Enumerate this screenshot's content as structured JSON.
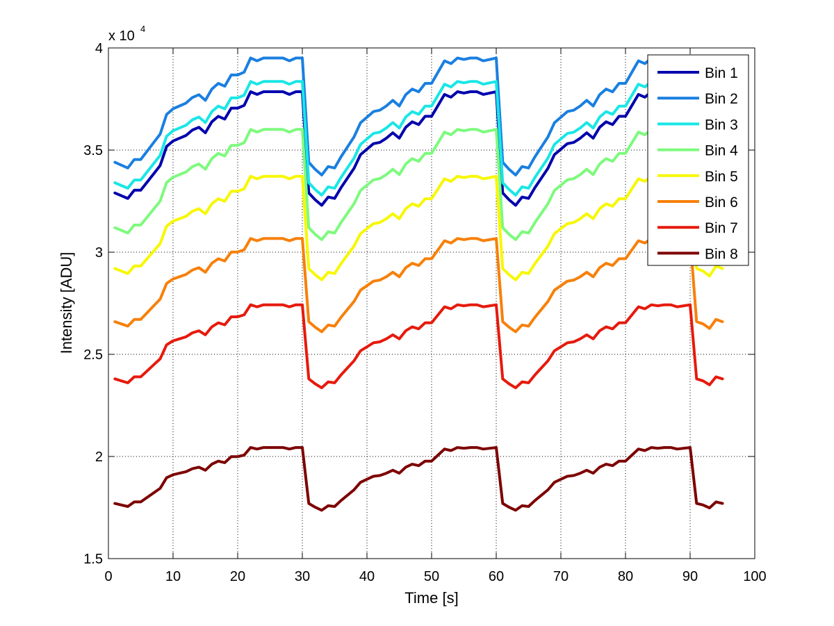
{
  "chart_data": {
    "type": "line",
    "title": "",
    "xlabel": "Time [s]",
    "ylabel": "Intensity [ADU]",
    "xlim": [
      0,
      100
    ],
    "ylim": [
      15000,
      40000
    ],
    "xticks": [
      0,
      10,
      20,
      30,
      40,
      50,
      60,
      70,
      80,
      90,
      100
    ],
    "yticks": [
      15000,
      20000,
      25000,
      30000,
      35000,
      40000
    ],
    "xtick_labels": [
      "0",
      "10",
      "20",
      "30",
      "40",
      "50",
      "60",
      "70",
      "80",
      "90",
      "100"
    ],
    "ytick_labels": [
      "1.5",
      "2",
      "2.5",
      "3",
      "3.5",
      "4"
    ],
    "y_exponent_label": "x 10",
    "y_exponent": "4",
    "grid": true,
    "legend_position": "top-right",
    "x": [
      1,
      2,
      3,
      4,
      5,
      6,
      7,
      8,
      9,
      10,
      11,
      12,
      13,
      14,
      15,
      16,
      17,
      18,
      19,
      20,
      21,
      22,
      23,
      24,
      25,
      26,
      27,
      28,
      29,
      30,
      31,
      32,
      33,
      34,
      35,
      36,
      37,
      38,
      39,
      40,
      41,
      42,
      43,
      44,
      45,
      46,
      47,
      48,
      49,
      50,
      51,
      52,
      53,
      54,
      55,
      56,
      57,
      58,
      59,
      60,
      61,
      62,
      63,
      64,
      65,
      66,
      67,
      68,
      69,
      70,
      71,
      72,
      73,
      74,
      75,
      76,
      77,
      78,
      79,
      80,
      81,
      82,
      83,
      84,
      85,
      86,
      87,
      88,
      89,
      90,
      91,
      92,
      93,
      94,
      95
    ],
    "base_shape": [
      0,
      -100,
      -200,
      100,
      100,
      400,
      700,
      1000,
      1700,
      1900,
      2000,
      2100,
      2300,
      2400,
      2200,
      2600,
      2800,
      2700,
      3100,
      3100,
      3200,
      3700,
      3600,
      3700,
      3700,
      3700,
      3700,
      3600,
      3700,
      3700,
      0,
      -250,
      -450,
      -150,
      -200,
      200,
      550,
      900,
      1400,
      1600,
      1800,
      1850,
      2000,
      2200,
      2000,
      2400,
      2600,
      2500,
      2800,
      2800,
      3200,
      3600,
      3500,
      3700,
      3650,
      3700,
      3700,
      3600,
      3650,
      3700,
      0,
      -250,
      -450,
      -150,
      -200,
      200,
      550,
      900,
      1400,
      1600,
      1800,
      1850,
      2000,
      2200,
      2000,
      2400,
      2600,
      2500,
      2800,
      2800,
      3200,
      3600,
      3500,
      3700,
      3650,
      3700,
      3700,
      3600,
      3650,
      3700,
      0,
      -100,
      -300,
      100,
      0
    ],
    "series": [
      {
        "name": "Bin 1",
        "color": "#0000ad",
        "baseline": 32900,
        "scale": 1.34
      },
      {
        "name": "Bin 2",
        "color": "#1a7fe0",
        "baseline": 34400,
        "scale": 1.38
      },
      {
        "name": "Bin 3",
        "color": "#1ae6e6",
        "baseline": 33400,
        "scale": 1.34
      },
      {
        "name": "Bin 4",
        "color": "#7dfa7d",
        "baseline": 31200,
        "scale": 1.3
      },
      {
        "name": "Bin 5",
        "color": "#f7f700",
        "baseline": 29200,
        "scale": 1.22
      },
      {
        "name": "Bin 6",
        "color": "#f7800a",
        "baseline": 26600,
        "scale": 1.1
      },
      {
        "name": "Bin 7",
        "color": "#e61a0d",
        "baseline": 23800,
        "scale": 0.98
      },
      {
        "name": "Bin 8",
        "color": "#7d0000",
        "baseline": 17700,
        "scale": 0.74
      }
    ]
  }
}
